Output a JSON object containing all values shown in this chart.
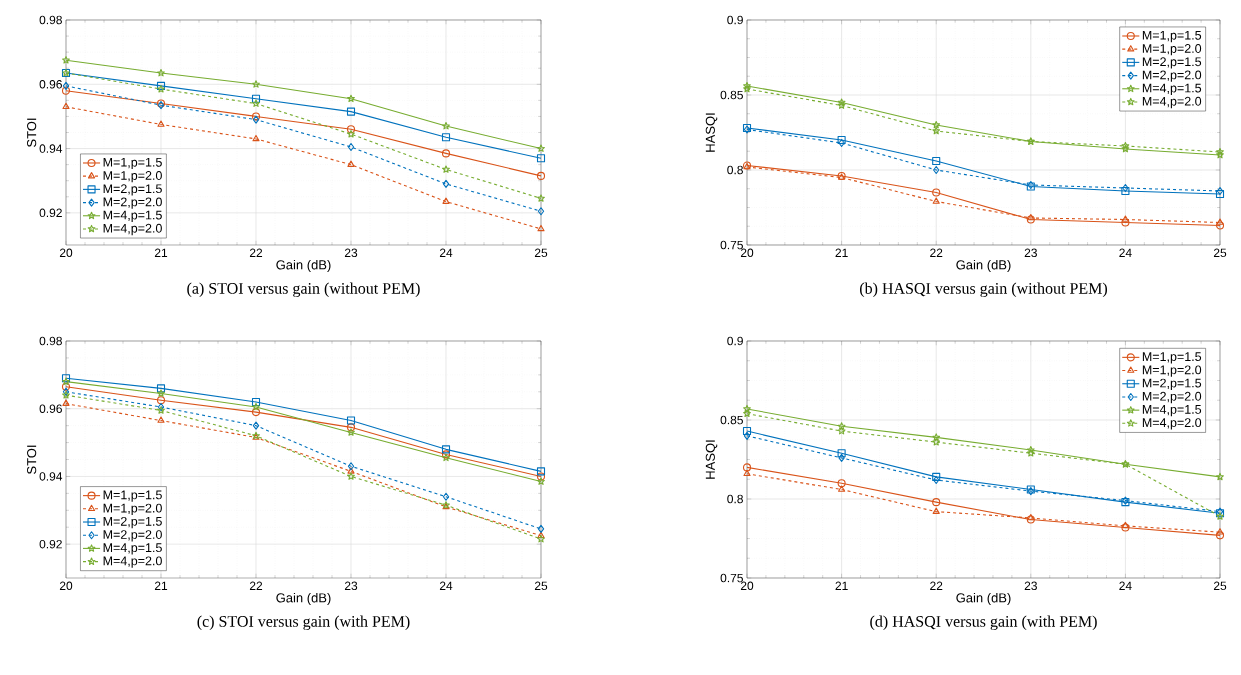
{
  "chart_data": [
    {
      "type": "line",
      "title": "(a) STOI versus gain (without PEM)",
      "xlabel": "Gain (dB)",
      "ylabel": "STOI",
      "x": [
        20,
        21,
        22,
        23,
        24,
        25
      ],
      "xlim": [
        20,
        25
      ],
      "xticks": [
        20,
        21,
        22,
        23,
        24,
        25
      ],
      "ylim": [
        0.91,
        0.98
      ],
      "yticks": [
        0.92,
        0.94,
        0.96,
        0.98
      ],
      "grid": true,
      "legend": "bottom left",
      "series": [
        {
          "name": "M=1,p=1.5",
          "color": "#d95319",
          "marker": "circle",
          "line_style": "solid",
          "values": [
            0.958,
            0.954,
            0.95,
            0.946,
            0.9385,
            0.9315
          ]
        },
        {
          "name": "M=1,p=2.0",
          "color": "#d95319",
          "marker": "triangle",
          "line_style": "dashed",
          "values": [
            0.953,
            0.9475,
            0.943,
            0.935,
            0.9235,
            0.915
          ]
        },
        {
          "name": "M=2,p=1.5",
          "color": "#0072bd",
          "marker": "square",
          "line_style": "solid",
          "values": [
            0.9635,
            0.9595,
            0.9555,
            0.9515,
            0.9435,
            0.937
          ]
        },
        {
          "name": "M=2,p=2.0",
          "color": "#0072bd",
          "marker": "diamond",
          "line_style": "dashed",
          "values": [
            0.9595,
            0.9535,
            0.949,
            0.9405,
            0.929,
            0.9205
          ]
        },
        {
          "name": "M=4,p=1.5",
          "color": "#77ac30",
          "marker": "star",
          "line_style": "solid",
          "values": [
            0.9675,
            0.9635,
            0.96,
            0.9555,
            0.947,
            0.94
          ]
        },
        {
          "name": "M=4,p=2.0",
          "color": "#77ac30",
          "marker": "star",
          "line_style": "dashed",
          "values": [
            0.9635,
            0.9585,
            0.954,
            0.9445,
            0.9335,
            0.9245
          ]
        }
      ]
    },
    {
      "type": "line",
      "title": "(b) HASQI versus gain (without PEM)",
      "xlabel": "Gain (dB)",
      "ylabel": "HASQI",
      "x": [
        20,
        21,
        22,
        23,
        24,
        25
      ],
      "xlim": [
        20,
        25
      ],
      "xticks": [
        20,
        21,
        22,
        23,
        24,
        25
      ],
      "ylim": [
        0.75,
        0.9
      ],
      "yticks": [
        0.75,
        0.8,
        0.85,
        0.9
      ],
      "grid": true,
      "legend": "top right",
      "series": [
        {
          "name": "M=1,p=1.5",
          "color": "#d95319",
          "marker": "circle",
          "line_style": "solid",
          "values": [
            0.803,
            0.796,
            0.785,
            0.767,
            0.765,
            0.763
          ]
        },
        {
          "name": "M=1,p=2.0",
          "color": "#d95319",
          "marker": "triangle",
          "line_style": "dashed",
          "values": [
            0.802,
            0.795,
            0.779,
            0.768,
            0.767,
            0.765
          ]
        },
        {
          "name": "M=2,p=1.5",
          "color": "#0072bd",
          "marker": "square",
          "line_style": "solid",
          "values": [
            0.828,
            0.82,
            0.806,
            0.789,
            0.786,
            0.784
          ]
        },
        {
          "name": "M=2,p=2.0",
          "color": "#0072bd",
          "marker": "diamond",
          "line_style": "dashed",
          "values": [
            0.827,
            0.818,
            0.8,
            0.79,
            0.788,
            0.786
          ]
        },
        {
          "name": "M=4,p=1.5",
          "color": "#77ac30",
          "marker": "star",
          "line_style": "solid",
          "values": [
            0.856,
            0.845,
            0.83,
            0.819,
            0.814,
            0.81
          ]
        },
        {
          "name": "M=4,p=2.0",
          "color": "#77ac30",
          "marker": "star",
          "line_style": "dashed",
          "values": [
            0.854,
            0.843,
            0.826,
            0.819,
            0.816,
            0.812
          ]
        }
      ]
    },
    {
      "type": "line",
      "title": "(c) STOI versus gain (with PEM)",
      "xlabel": "Gain (dB)",
      "ylabel": "STOI",
      "x": [
        20,
        21,
        22,
        23,
        24,
        25
      ],
      "xlim": [
        20,
        25
      ],
      "xticks": [
        20,
        21,
        22,
        23,
        24,
        25
      ],
      "ylim": [
        0.91,
        0.98
      ],
      "yticks": [
        0.92,
        0.94,
        0.96,
        0.98
      ],
      "grid": true,
      "legend": "bottom left",
      "series": [
        {
          "name": "M=1,p=1.5",
          "color": "#d95319",
          "marker": "circle",
          "line_style": "solid",
          "values": [
            0.9665,
            0.9625,
            0.959,
            0.9545,
            0.9465,
            0.94
          ]
        },
        {
          "name": "M=1,p=2.0",
          "color": "#d95319",
          "marker": "triangle",
          "line_style": "dashed",
          "values": [
            0.9615,
            0.9565,
            0.9515,
            0.9415,
            0.931,
            0.9225
          ]
        },
        {
          "name": "M=2,p=1.5",
          "color": "#0072bd",
          "marker": "square",
          "line_style": "solid",
          "values": [
            0.969,
            0.966,
            0.962,
            0.9565,
            0.948,
            0.9415
          ]
        },
        {
          "name": "M=2,p=2.0",
          "color": "#0072bd",
          "marker": "diamond",
          "line_style": "dashed",
          "values": [
            0.965,
            0.9605,
            0.955,
            0.943,
            0.934,
            0.9245
          ]
        },
        {
          "name": "M=4,p=1.5",
          "color": "#77ac30",
          "marker": "star",
          "line_style": "solid",
          "values": [
            0.968,
            0.9645,
            0.9605,
            0.953,
            0.9455,
            0.9385
          ]
        },
        {
          "name": "M=4,p=2.0",
          "color": "#77ac30",
          "marker": "star",
          "line_style": "dashed",
          "values": [
            0.964,
            0.9595,
            0.952,
            0.94,
            0.9315,
            0.9215
          ]
        }
      ]
    },
    {
      "type": "line",
      "title": "(d) HASQI versus gain (with PEM)",
      "xlabel": "Gain (dB)",
      "ylabel": "HASQI",
      "x": [
        20,
        21,
        22,
        23,
        24,
        25
      ],
      "xlim": [
        20,
        25
      ],
      "xticks": [
        20,
        21,
        22,
        23,
        24,
        25
      ],
      "ylim": [
        0.75,
        0.9
      ],
      "yticks": [
        0.75,
        0.8,
        0.85,
        0.9
      ],
      "grid": true,
      "legend": "top right",
      "series": [
        {
          "name": "M=1,p=1.5",
          "color": "#d95319",
          "marker": "circle",
          "line_style": "solid",
          "values": [
            0.82,
            0.81,
            0.798,
            0.787,
            0.782,
            0.777
          ]
        },
        {
          "name": "M=1,p=2.0",
          "color": "#d95319",
          "marker": "triangle",
          "line_style": "dashed",
          "values": [
            0.816,
            0.806,
            0.792,
            0.788,
            0.783,
            0.779
          ]
        },
        {
          "name": "M=2,p=1.5",
          "color": "#0072bd",
          "marker": "square",
          "line_style": "solid",
          "values": [
            0.843,
            0.829,
            0.814,
            0.806,
            0.798,
            0.791
          ]
        },
        {
          "name": "M=2,p=2.0",
          "color": "#0072bd",
          "marker": "diamond",
          "line_style": "dashed",
          "values": [
            0.84,
            0.826,
            0.812,
            0.805,
            0.799,
            0.792
          ]
        },
        {
          "name": "M=4,p=1.5",
          "color": "#77ac30",
          "marker": "star",
          "line_style": "solid",
          "values": [
            0.857,
            0.846,
            0.839,
            0.831,
            0.822,
            0.814
          ]
        },
        {
          "name": "M=4,p=2.0",
          "color": "#77ac30",
          "marker": "star",
          "line_style": "dashed",
          "values": [
            0.854,
            0.843,
            0.836,
            0.829,
            0.822,
            0.789
          ]
        }
      ]
    }
  ]
}
